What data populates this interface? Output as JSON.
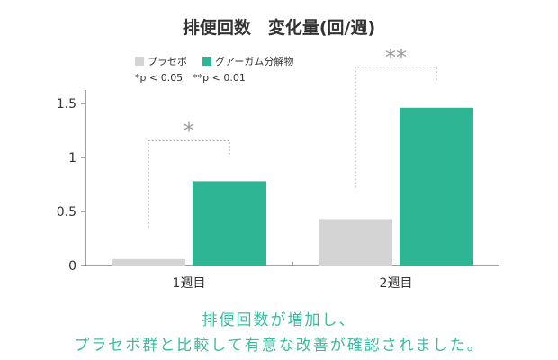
{
  "chart_data": {
    "type": "bar",
    "title": "排便回数　変化量(回/週)",
    "categories": [
      "1週目",
      "2週目"
    ],
    "series": [
      {
        "name": "プラセボ",
        "color": "#d4d4d4",
        "values": [
          0.06,
          0.43
        ]
      },
      {
        "name": "グアーガム分解物",
        "color": "#2db594",
        "values": [
          0.78,
          1.46
        ]
      }
    ],
    "ylim": [
      0,
      1.5
    ],
    "yticks": [
      {
        "value": 0,
        "label": "0"
      },
      {
        "value": 0.5,
        "label": "0.5"
      },
      {
        "value": 1,
        "label": "1"
      },
      {
        "value": 1.5,
        "label": "1.5"
      }
    ],
    "significance": [
      "*",
      "**"
    ],
    "significance_note": "*p < 0.05　**p < 0.01",
    "legend_position": "top-left",
    "grid": false
  },
  "conclusion": {
    "line1": "排便回数が増加し、",
    "line2": "プラセボ群と比較して有意な改善が確認されました。"
  }
}
